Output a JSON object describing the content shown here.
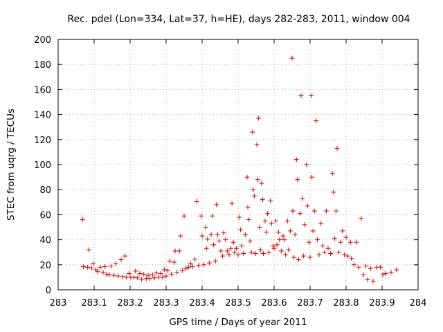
{
  "chart_data": {
    "type": "scatter",
    "title": "Rec. pdel (Lon=334, Lat=37, h=HE), days 282-283, 2011, window 004",
    "xlabel": "GPS time / Days of year 2011",
    "ylabel": "STEC from uqrg / TECUs",
    "xlim": [
      283,
      284
    ],
    "ylim": [
      0,
      200
    ],
    "xticks": [
      "283",
      "283.1",
      "283.2",
      "283.3",
      "283.4",
      "283.5",
      "283.6",
      "283.7",
      "283.8",
      "283.9",
      "284"
    ],
    "yticks": [
      "0",
      "20",
      "40",
      "60",
      "80",
      "100",
      "120",
      "140",
      "160",
      "180",
      "200"
    ],
    "grid": true,
    "marker": "+",
    "color": "#cc0000",
    "points": [
      [
        283.068,
        56
      ],
      [
        283.07,
        18.5
      ],
      [
        283.082,
        18
      ],
      [
        283.085,
        32
      ],
      [
        283.093,
        17.5
      ],
      [
        283.097,
        21
      ],
      [
        283.105,
        16
      ],
      [
        283.11,
        14.5
      ],
      [
        283.117,
        18
      ],
      [
        283.125,
        14
      ],
      [
        283.13,
        18.5
      ],
      [
        283.135,
        12.5
      ],
      [
        283.142,
        12
      ],
      [
        283.147,
        19
      ],
      [
        283.155,
        11.5
      ],
      [
        283.16,
        21
      ],
      [
        283.167,
        11
      ],
      [
        283.175,
        24
      ],
      [
        283.18,
        10.5
      ],
      [
        283.186,
        27
      ],
      [
        283.19,
        10
      ],
      [
        283.197,
        13
      ],
      [
        283.202,
        10
      ],
      [
        283.21,
        10
      ],
      [
        283.215,
        15
      ],
      [
        283.22,
        9.5
      ],
      [
        283.227,
        13
      ],
      [
        283.232,
        8.5
      ],
      [
        283.238,
        12.5
      ],
      [
        283.245,
        9
      ],
      [
        283.25,
        11.5
      ],
      [
        283.255,
        9
      ],
      [
        283.262,
        12
      ],
      [
        283.268,
        9.5
      ],
      [
        283.273,
        13.5
      ],
      [
        283.28,
        10
      ],
      [
        283.285,
        13
      ],
      [
        283.29,
        10
      ],
      [
        283.295,
        16
      ],
      [
        283.3,
        11
      ],
      [
        283.305,
        15.5
      ],
      [
        283.31,
        23
      ],
      [
        283.315,
        12.5
      ],
      [
        283.322,
        22
      ],
      [
        283.325,
        31
      ],
      [
        283.33,
        14
      ],
      [
        283.337,
        31
      ],
      [
        283.34,
        43
      ],
      [
        283.345,
        15.5
      ],
      [
        283.35,
        59
      ],
      [
        283.355,
        17
      ],
      [
        283.362,
        18
      ],
      [
        283.368,
        21
      ],
      [
        283.373,
        18.5
      ],
      [
        283.38,
        24.5
      ],
      [
        283.385,
        70.5
      ],
      [
        283.39,
        19.5
      ],
      [
        283.397,
        59
      ],
      [
        283.4,
        43
      ],
      [
        283.405,
        20
      ],
      [
        283.41,
        50
      ],
      [
        283.412,
        33
      ],
      [
        283.415,
        40.5
      ],
      [
        283.42,
        21.5
      ],
      [
        283.425,
        44
      ],
      [
        283.428,
        59
      ],
      [
        283.432,
        36
      ],
      [
        283.437,
        23
      ],
      [
        283.44,
        68
      ],
      [
        283.443,
        44
      ],
      [
        283.447,
        39
      ],
      [
        283.452,
        31
      ],
      [
        283.457,
        27
      ],
      [
        283.46,
        45.5
      ],
      [
        283.465,
        40
      ],
      [
        283.47,
        31
      ],
      [
        283.475,
        28
      ],
      [
        283.48,
        33
      ],
      [
        283.483,
        69
      ],
      [
        283.487,
        38
      ],
      [
        283.49,
        30
      ],
      [
        283.495,
        33
      ],
      [
        283.5,
        28
      ],
      [
        283.503,
        58
      ],
      [
        283.507,
        48
      ],
      [
        283.51,
        35
      ],
      [
        283.515,
        29
      ],
      [
        283.52,
        44
      ],
      [
        283.525,
        90
      ],
      [
        283.527,
        66
      ],
      [
        283.53,
        56
      ],
      [
        283.533,
        39
      ],
      [
        283.537,
        30
      ],
      [
        283.54,
        126
      ],
      [
        283.542,
        80
      ],
      [
        283.545,
        75
      ],
      [
        283.548,
        29
      ],
      [
        283.552,
        116
      ],
      [
        283.555,
        88
      ],
      [
        283.557,
        137
      ],
      [
        283.56,
        50
      ],
      [
        283.562,
        32
      ],
      [
        283.565,
        85
      ],
      [
        283.568,
        72
      ],
      [
        283.57,
        29
      ],
      [
        283.575,
        55
      ],
      [
        283.578,
        46
      ],
      [
        283.582,
        61
      ],
      [
        283.585,
        30
      ],
      [
        283.59,
        71
      ],
      [
        283.593,
        53
      ],
      [
        283.597,
        35
      ],
      [
        283.6,
        33
      ],
      [
        283.605,
        55
      ],
      [
        283.608,
        36
      ],
      [
        283.612,
        46
      ],
      [
        283.615,
        40
      ],
      [
        283.62,
        31
      ],
      [
        283.625,
        43
      ],
      [
        283.628,
        40
      ],
      [
        283.632,
        28
      ],
      [
        283.637,
        55
      ],
      [
        283.64,
        32
      ],
      [
        283.645,
        47
      ],
      [
        283.65,
        185
      ],
      [
        283.652,
        63
      ],
      [
        283.655,
        26
      ],
      [
        283.658,
        44
      ],
      [
        283.662,
        104
      ],
      [
        283.665,
        88
      ],
      [
        283.668,
        24
      ],
      [
        283.672,
        61
      ],
      [
        283.675,
        155
      ],
      [
        283.678,
        73
      ],
      [
        283.682,
        27
      ],
      [
        283.685,
        52
      ],
      [
        283.69,
        100
      ],
      [
        283.693,
        67
      ],
      [
        283.697,
        38
      ],
      [
        283.7,
        26
      ],
      [
        283.703,
        155
      ],
      [
        283.705,
        90
      ],
      [
        283.708,
        47
      ],
      [
        283.712,
        63
      ],
      [
        283.717,
        135
      ],
      [
        283.72,
        40
      ],
      [
        283.725,
        28
      ],
      [
        283.73,
        53
      ],
      [
        283.735,
        35
      ],
      [
        283.74,
        30
      ],
      [
        283.745,
        63
      ],
      [
        283.75,
        33
      ],
      [
        283.757,
        29
      ],
      [
        283.762,
        93
      ],
      [
        283.765,
        78
      ],
      [
        283.768,
        41
      ],
      [
        283.772,
        63
      ],
      [
        283.775,
        113
      ],
      [
        283.78,
        30
      ],
      [
        283.785,
        38
      ],
      [
        283.79,
        47
      ],
      [
        283.795,
        28
      ],
      [
        283.8,
        42
      ],
      [
        283.805,
        27
      ],
      [
        283.812,
        38
      ],
      [
        283.815,
        25
      ],
      [
        283.822,
        20
      ],
      [
        283.828,
        38
      ],
      [
        283.835,
        18
      ],
      [
        283.842,
        57
      ],
      [
        283.848,
        12
      ],
      [
        283.855,
        19
      ],
      [
        283.86,
        8
      ],
      [
        283.868,
        17
      ],
      [
        283.875,
        7
      ],
      [
        283.885,
        18
      ],
      [
        283.895,
        18
      ],
      [
        283.902,
        12
      ],
      [
        283.91,
        13
      ],
      [
        283.925,
        14
      ],
      [
        283.94,
        16
      ]
    ]
  }
}
